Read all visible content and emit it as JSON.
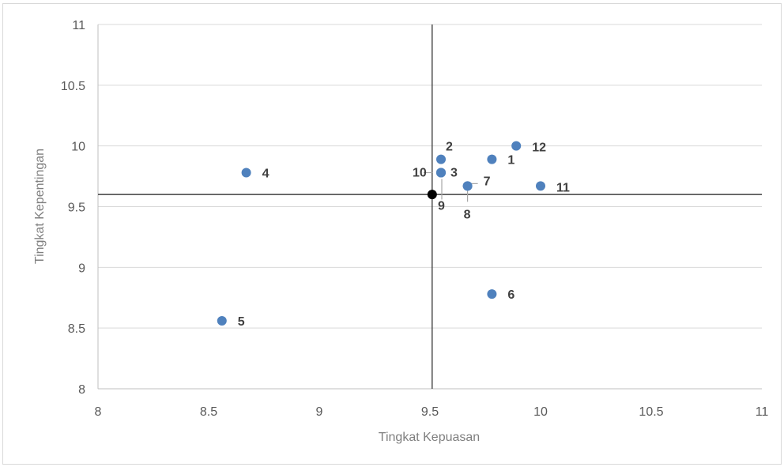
{
  "chart_data": {
    "type": "scatter",
    "xlabel": "Tingkat Kepuasan",
    "ylabel": "Tingkat Kepentingan",
    "xlim": [
      8,
      11
    ],
    "ylim": [
      8,
      11
    ],
    "x_ticks": [
      "8",
      "8.5",
      "9",
      "9.5",
      "10",
      "10.5",
      "11"
    ],
    "y_ticks": [
      "8",
      "8.5",
      "9",
      "9.5",
      "10",
      "10.5",
      "11"
    ],
    "grid": "horizontal",
    "legend": "none",
    "point_color": "#4f81bd",
    "center_point_color": "#000000",
    "quadrant_lines": {
      "x": 9.51,
      "y": 9.6
    },
    "points": [
      {
        "label": "1",
        "x": 9.78,
        "y": 9.89
      },
      {
        "label": "2",
        "x": 9.55,
        "y": 9.89
      },
      {
        "label": "3",
        "x": 9.55,
        "y": 9.78
      },
      {
        "label": "4",
        "x": 8.67,
        "y": 9.78
      },
      {
        "label": "5",
        "x": 8.56,
        "y": 8.56
      },
      {
        "label": "6",
        "x": 9.78,
        "y": 8.78
      },
      {
        "label": "7",
        "x": 9.67,
        "y": 9.67
      },
      {
        "label": "8",
        "x": 9.67,
        "y": 9.67
      },
      {
        "label": "9",
        "x": 9.55,
        "y": 9.78
      },
      {
        "label": "10",
        "x": 9.55,
        "y": 9.78
      },
      {
        "label": "11",
        "x": 10.0,
        "y": 9.67
      },
      {
        "label": "12",
        "x": 9.89,
        "y": 10.0
      }
    ],
    "center_point": {
      "x": 9.51,
      "y": 9.6
    }
  }
}
